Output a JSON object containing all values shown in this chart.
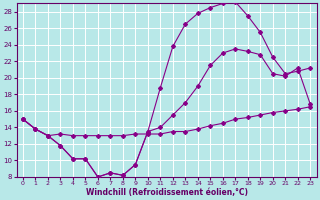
{
  "xlabel": "Windchill (Refroidissement éolien,°C)",
  "bg_color": "#b8e8e8",
  "grid_color": "#ffffff",
  "line_color": "#880088",
  "xlim": [
    -0.5,
    23.5
  ],
  "ylim": [
    8,
    29
  ],
  "yticks": [
    8,
    10,
    12,
    14,
    16,
    18,
    20,
    22,
    24,
    26,
    28
  ],
  "xticks": [
    0,
    1,
    2,
    3,
    4,
    5,
    6,
    7,
    8,
    9,
    10,
    11,
    12,
    13,
    14,
    15,
    16,
    17,
    18,
    19,
    20,
    21,
    22,
    23
  ],
  "line1_x": [
    0,
    1,
    2,
    3,
    4,
    5,
    6,
    7,
    8,
    9,
    10,
    11,
    12,
    13,
    14,
    15,
    16,
    17,
    18,
    19,
    20,
    21,
    22,
    23
  ],
  "line1_y": [
    15.0,
    13.8,
    13.0,
    13.2,
    13.0,
    13.0,
    13.0,
    13.0,
    13.0,
    13.2,
    13.2,
    13.2,
    13.5,
    13.5,
    13.8,
    14.2,
    14.5,
    15.0,
    15.2,
    15.5,
    15.8,
    16.0,
    16.2,
    16.5
  ],
  "line2_x": [
    0,
    1,
    2,
    3,
    4,
    5,
    6,
    7,
    8,
    9,
    10,
    11,
    12,
    13,
    14,
    15,
    16,
    17,
    18,
    19,
    20,
    21,
    22,
    23
  ],
  "line2_y": [
    15.0,
    13.8,
    13.0,
    11.8,
    10.2,
    10.2,
    8.0,
    8.5,
    8.2,
    9.5,
    13.5,
    14.0,
    15.5,
    17.0,
    19.0,
    21.5,
    23.0,
    23.5,
    23.2,
    22.8,
    20.5,
    20.2,
    21.2,
    16.8
  ],
  "line3_x": [
    0,
    1,
    2,
    3,
    4,
    5,
    6,
    7,
    8,
    9,
    10,
    11,
    12,
    13,
    14,
    15,
    16,
    17,
    18,
    19,
    20,
    21,
    22,
    23
  ],
  "line3_y": [
    15.0,
    13.8,
    13.0,
    11.8,
    10.2,
    10.2,
    8.0,
    8.5,
    8.2,
    9.5,
    13.5,
    18.8,
    23.8,
    26.5,
    27.8,
    28.5,
    29.0,
    29.2,
    27.5,
    25.5,
    22.5,
    20.5,
    20.8,
    21.2
  ]
}
